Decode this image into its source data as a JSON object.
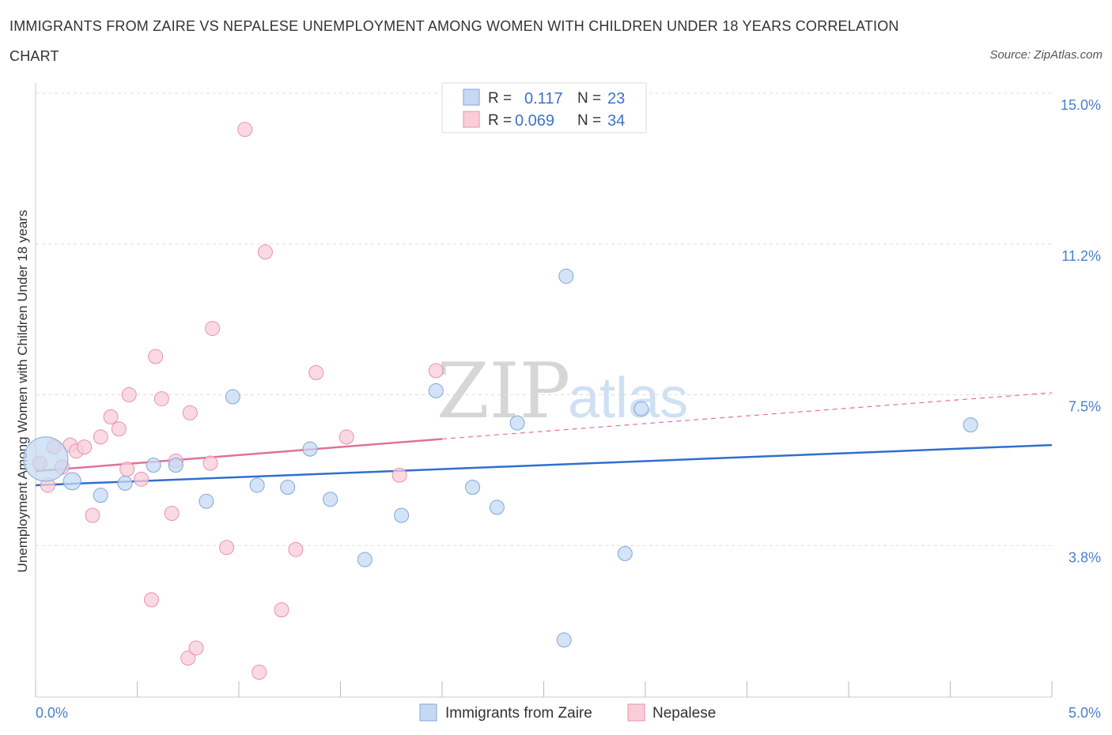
{
  "header": {
    "title": "IMMIGRANTS FROM ZAIRE VS NEPALESE UNEMPLOYMENT AMONG WOMEN WITH CHILDREN UNDER 18 YEARS CORRELATION CHART",
    "source": "Source: ZipAtlas.com"
  },
  "watermark": {
    "zip": "ZIP",
    "atlas": "atlas"
  },
  "legend": {
    "rows": [
      {
        "r_label": "R =",
        "r_value": "0.117",
        "n_label": "N =",
        "n_value": "23"
      },
      {
        "r_label": "R =",
        "r_value": "0.069",
        "n_label": "N =",
        "n_value": "34"
      }
    ]
  },
  "bottom_legend": {
    "zaire": "Immigrants from Zaire",
    "nepalese": "Nepalese"
  },
  "colors": {
    "zaire_fill": "#c5d9f3",
    "zaire_stroke": "#7fa7dc",
    "zaire_line": "#2f6fce",
    "nepal_fill": "#f9ccd9",
    "nepal_stroke": "#e892ad",
    "nepal_line": "#e0719a",
    "grid": "#dddddd",
    "axis_text": "#4a7fcb"
  },
  "chart_data": {
    "type": "scatter",
    "title": "IMMIGRANTS FROM ZAIRE VS NEPALESE UNEMPLOYMENT AMONG WOMEN WITH CHILDREN UNDER 18 YEARS CORRELATION CHART",
    "xlabel": "",
    "ylabel": "Unemployment Among Women with Children Under 18 years",
    "xlim": [
      0,
      5
    ],
    "ylim": [
      0,
      15
    ],
    "x_tick_labels": [
      "0.0%",
      "5.0%"
    ],
    "y_ticks": [
      3.75,
      7.5,
      11.25,
      15.0
    ],
    "y_tick_labels": [
      "3.8%",
      "7.5%",
      "11.2%",
      "15.0%"
    ],
    "grid": true,
    "legend_position": "top-center",
    "series": [
      {
        "name": "Immigrants from Zaire",
        "r": 0.117,
        "n": 23,
        "trend": {
          "x": [
            0,
            5
          ],
          "y": [
            5.25,
            6.25
          ]
        },
        "points": [
          [
            0.05,
            5.9
          ],
          [
            0.18,
            5.35
          ],
          [
            0.32,
            5.0
          ],
          [
            0.44,
            5.3
          ],
          [
            0.58,
            5.75
          ],
          [
            0.69,
            5.75
          ],
          [
            0.84,
            4.85
          ],
          [
            0.97,
            7.45
          ],
          [
            1.09,
            5.25
          ],
          [
            1.24,
            5.2
          ],
          [
            1.35,
            6.15
          ],
          [
            1.45,
            4.9
          ],
          [
            1.62,
            3.4
          ],
          [
            1.8,
            4.5
          ],
          [
            1.97,
            7.6
          ],
          [
            2.15,
            5.2
          ],
          [
            2.27,
            4.7
          ],
          [
            2.37,
            6.8
          ],
          [
            2.6,
            1.4
          ],
          [
            2.61,
            10.45
          ],
          [
            2.9,
            3.55
          ],
          [
            2.98,
            7.15
          ],
          [
            4.6,
            6.75
          ]
        ],
        "sizes": [
          28,
          11,
          9,
          9,
          9,
          9,
          9,
          9,
          9,
          9,
          9,
          9,
          9,
          9,
          9,
          9,
          9,
          9,
          9,
          9,
          9,
          9,
          9
        ]
      },
      {
        "name": "Nepalese",
        "r": 0.069,
        "n": 34,
        "trend": {
          "x": [
            0,
            2.0
          ],
          "y": [
            5.6,
            6.4
          ],
          "dashed_extension": {
            "x": [
              2.0,
              5.0
            ],
            "y": [
              6.4,
              7.55
            ]
          }
        },
        "points": [
          [
            0.02,
            5.8
          ],
          [
            0.06,
            5.25
          ],
          [
            0.09,
            6.2
          ],
          [
            0.13,
            5.7
          ],
          [
            0.17,
            6.25
          ],
          [
            0.2,
            6.1
          ],
          [
            0.24,
            6.2
          ],
          [
            0.28,
            4.5
          ],
          [
            0.32,
            6.45
          ],
          [
            0.37,
            6.95
          ],
          [
            0.41,
            6.65
          ],
          [
            0.45,
            5.65
          ],
          [
            0.46,
            7.5
          ],
          [
            0.52,
            5.4
          ],
          [
            0.57,
            2.4
          ],
          [
            0.59,
            8.45
          ],
          [
            0.62,
            7.4
          ],
          [
            0.67,
            4.55
          ],
          [
            0.69,
            5.85
          ],
          [
            0.75,
            0.95
          ],
          [
            0.76,
            7.05
          ],
          [
            0.79,
            1.2
          ],
          [
            0.86,
            5.8
          ],
          [
            0.87,
            9.15
          ],
          [
            0.94,
            3.7
          ],
          [
            1.03,
            14.1
          ],
          [
            1.1,
            0.6
          ],
          [
            1.13,
            11.05
          ],
          [
            1.21,
            2.15
          ],
          [
            1.28,
            3.65
          ],
          [
            1.38,
            8.05
          ],
          [
            1.53,
            6.45
          ],
          [
            1.79,
            5.5
          ],
          [
            1.97,
            8.1
          ]
        ]
      }
    ]
  }
}
